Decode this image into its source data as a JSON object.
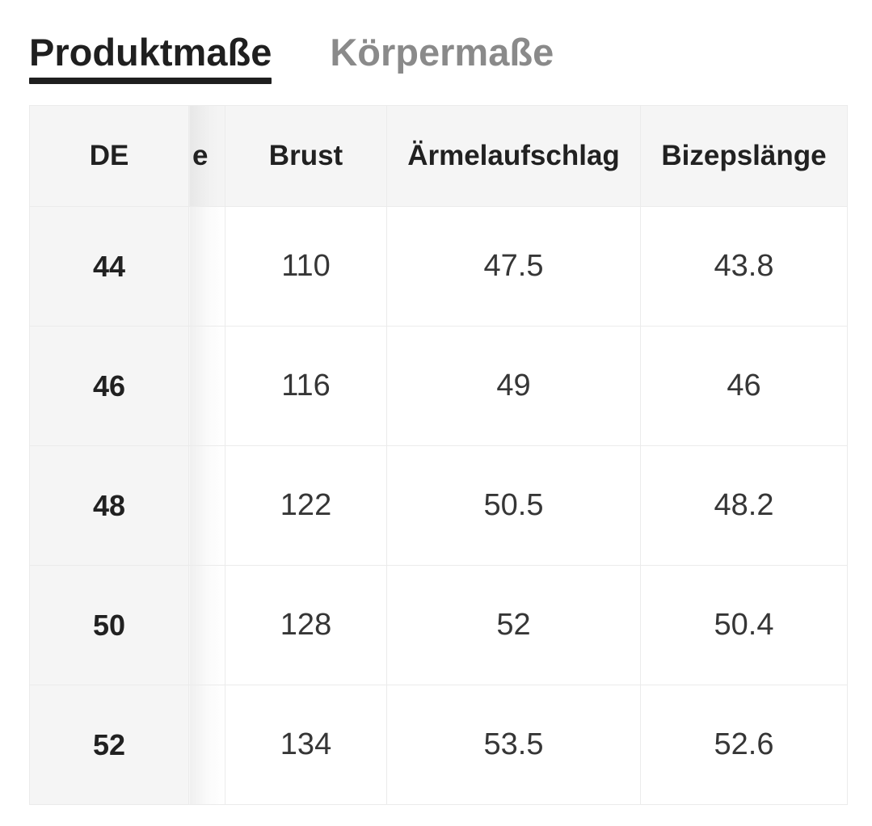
{
  "tabs": {
    "product_tab": "Produktmaße",
    "body_tab": "Körpermaße"
  },
  "table": {
    "columns": {
      "de": "DE",
      "hidden_partial": "e",
      "brust": "Brust",
      "aermelaufschlag": "Ärmelaufschlag",
      "bizepslaenge": "Bizepslänge"
    },
    "rows": [
      {
        "de": "44",
        "brust": "110",
        "aermelaufschlag": "47.5",
        "bizepslaenge": "43.8"
      },
      {
        "de": "46",
        "brust": "116",
        "aermelaufschlag": "49",
        "bizepslaenge": "46"
      },
      {
        "de": "48",
        "brust": "122",
        "aermelaufschlag": "50.5",
        "bizepslaenge": "48.2"
      },
      {
        "de": "50",
        "brust": "128",
        "aermelaufschlag": "52",
        "bizepslaenge": "50.4"
      },
      {
        "de": "52",
        "brust": "134",
        "aermelaufschlag": "53.5",
        "bizepslaenge": "52.6"
      }
    ]
  },
  "colors": {
    "tab_active": "#1f1f1f",
    "tab_inactive": "#8a8a8a",
    "header_bg": "#f5f5f5",
    "border": "#ebebeb",
    "text_dark": "#212121",
    "text_body": "#363636"
  }
}
